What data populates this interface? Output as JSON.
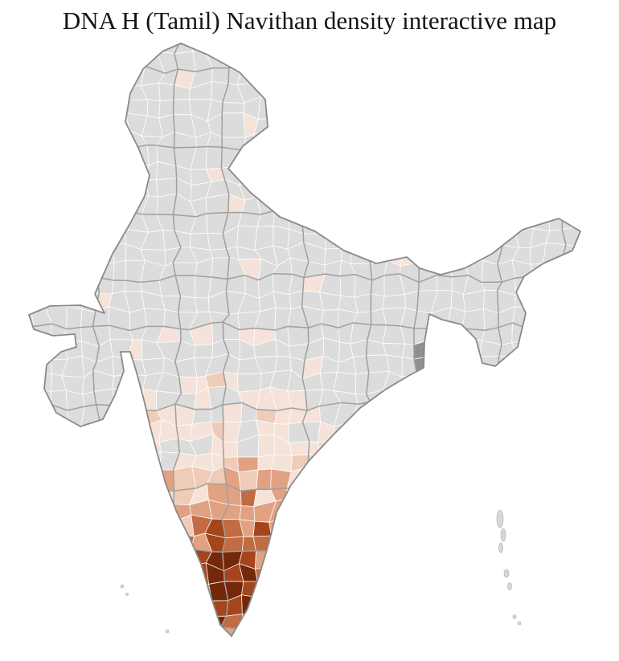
{
  "title": "DNA H (Tamil) Navithan density interactive map",
  "map": {
    "description": "District-level choropleth map of India showing DNA H (Tamil) Navithan density, darkest in Tamil Nadu and south India",
    "background": "#ffffff",
    "base_region_color": "#dcdcdc",
    "district_border_color": "#ffffff",
    "state_border_color": "#9b9b9b",
    "outline_color": "#8a8a8a",
    "island_color": "#d7d7d7",
    "dark_outlier_color": "#8f8f8f",
    "density_palette": [
      "#dcdcdc",
      "#f5e2d8",
      "#efccb8",
      "#e0a283",
      "#c16c42",
      "#a5451b",
      "#73280a"
    ]
  }
}
